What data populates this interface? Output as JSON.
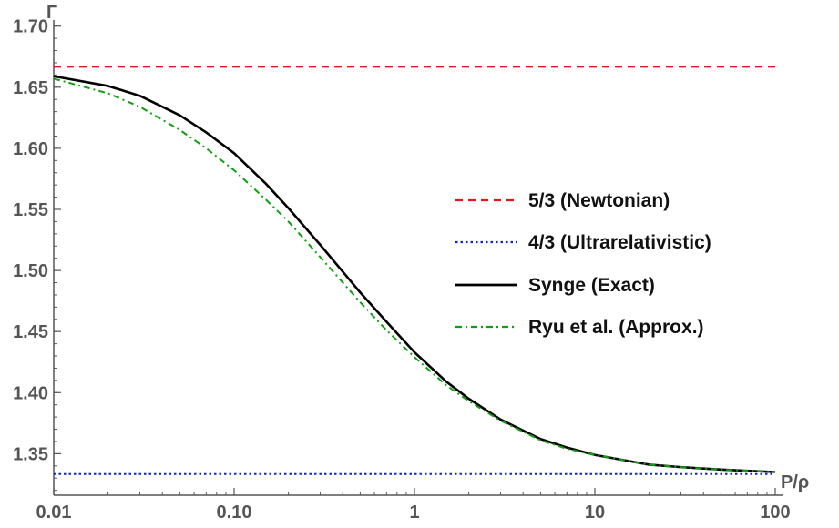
{
  "chart_data": {
    "type": "line",
    "xlabel": "P/ρ",
    "ylabel": "Γ",
    "xscale": "log",
    "xlim": [
      0.01,
      100
    ],
    "ylim": [
      1.316,
      1.705
    ],
    "xticks": [
      {
        "value": 0.01,
        "label": "0.01"
      },
      {
        "value": 0.1,
        "label": "0.10"
      },
      {
        "value": 1,
        "label": "1"
      },
      {
        "value": 10,
        "label": "10"
      },
      {
        "value": 100,
        "label": "100"
      }
    ],
    "yticks": [
      {
        "value": 1.35,
        "label": "1.35"
      },
      {
        "value": 1.4,
        "label": "1.40"
      },
      {
        "value": 1.45,
        "label": "1.45"
      },
      {
        "value": 1.5,
        "label": "1.50"
      },
      {
        "value": 1.55,
        "label": "1.55"
      },
      {
        "value": 1.6,
        "label": "1.60"
      },
      {
        "value": 1.65,
        "label": "1.65"
      },
      {
        "value": 1.7,
        "label": "1.70"
      }
    ],
    "grid": false,
    "legend_position": "center-right",
    "series": [
      {
        "name": "5/3 (Newtonian)",
        "color": "#e8141c",
        "style": "dashed",
        "x": [
          0.01,
          100
        ],
        "y": [
          1.6667,
          1.6667
        ]
      },
      {
        "name": "4/3 (Ultrarelativistic)",
        "color": "#1020d8",
        "style": "dotted",
        "x": [
          0.01,
          100
        ],
        "y": [
          1.3333,
          1.3333
        ]
      },
      {
        "name": "Synge (Exact)",
        "color": "#000000",
        "style": "solid",
        "x": [
          0.01,
          0.02,
          0.03,
          0.05,
          0.07,
          0.1,
          0.15,
          0.2,
          0.3,
          0.5,
          0.7,
          1,
          1.5,
          2,
          3,
          5,
          7,
          10,
          20,
          30,
          50,
          70,
          100
        ],
        "y": [
          1.659,
          1.651,
          1.643,
          1.627,
          1.613,
          1.596,
          1.571,
          1.551,
          1.521,
          1.482,
          1.458,
          1.433,
          1.409,
          1.395,
          1.378,
          1.362,
          1.355,
          1.349,
          1.341,
          1.339,
          1.337,
          1.336,
          1.335
        ]
      },
      {
        "name": "Ryu et al. (Approx.)",
        "color": "#0fa00f",
        "style": "dashdot",
        "x": [
          0.01,
          0.02,
          0.03,
          0.05,
          0.07,
          0.1,
          0.15,
          0.2,
          0.3,
          0.5,
          0.7,
          1,
          1.5,
          2,
          3,
          5,
          7,
          10,
          20,
          30,
          50,
          70,
          100
        ],
        "y": [
          1.657,
          1.645,
          1.634,
          1.615,
          1.6,
          1.582,
          1.558,
          1.54,
          1.511,
          1.474,
          1.451,
          1.429,
          1.406,
          1.393,
          1.377,
          1.361,
          1.354,
          1.349,
          1.341,
          1.339,
          1.337,
          1.336,
          1.335
        ]
      }
    ]
  }
}
